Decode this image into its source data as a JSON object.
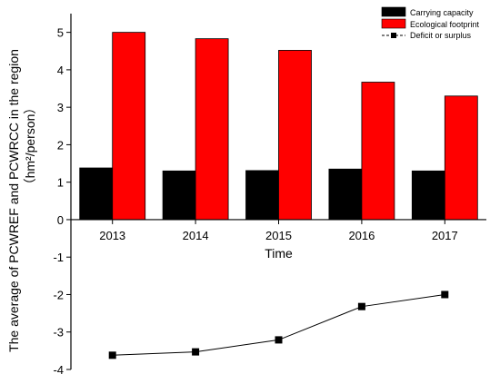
{
  "chart_data": {
    "type": "bar",
    "categories": [
      "2013",
      "2014",
      "2015",
      "2016",
      "2017"
    ],
    "series": [
      {
        "name": "Carrying capacity",
        "kind": "bar",
        "color": "#000000",
        "values": [
          1.38,
          1.3,
          1.31,
          1.35,
          1.3
        ]
      },
      {
        "name": "Ecological footprint",
        "kind": "bar",
        "color": "#ff0000",
        "values": [
          5.0,
          4.83,
          4.52,
          3.67,
          3.3
        ]
      },
      {
        "name": "Deficit or surplus",
        "kind": "line",
        "color": "#000000",
        "values": [
          -3.62,
          -3.53,
          -3.21,
          -2.32,
          -2.0
        ]
      }
    ],
    "xlabel": "Time",
    "ylabel_line1": "The average of PCWREF and PCWRCC in the region",
    "ylabel_line2": "（hm²/person）",
    "ylim": [
      -4,
      5.5
    ],
    "yticks": [
      -4,
      -3,
      -2,
      -1,
      0,
      1,
      2,
      3,
      4,
      5
    ],
    "legend_position": "top-right",
    "grid": false
  }
}
